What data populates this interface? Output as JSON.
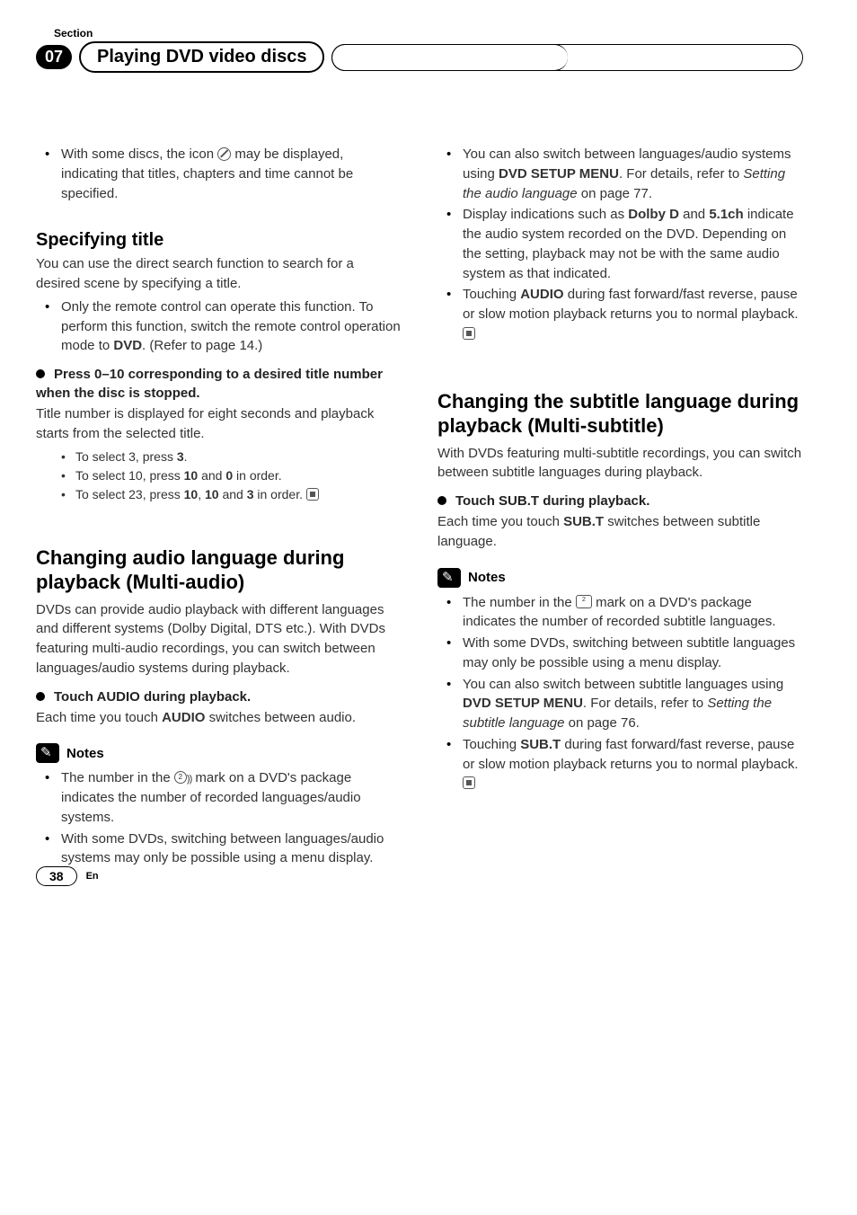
{
  "header": {
    "section_label": "Section",
    "section_number": "07",
    "chapter_title": "Playing DVD video discs"
  },
  "left": {
    "intro_bullet": "With some discs, the icon ⃠ may be displayed, indicating that titles, chapters and time cannot be specified.",
    "h_specifying": "Specifying title",
    "spec_p1": "You can use the direct search function to search for a desired scene by specifying a title.",
    "spec_b1_pre": "Only the remote control can operate this function. To perform this function, switch the remote control operation mode to ",
    "spec_b1_bold": "DVD",
    "spec_b1_post": ". (Refer to page 14.)",
    "spec_step": "Press 0–10 corresponding to a desired title number when the disc is stopped.",
    "spec_p2": "Title number is displayed for eight seconds and playback starts from the selected title.",
    "spec_sub1_a": "To select 3, press ",
    "spec_sub1_b": "3",
    "spec_sub1_c": ".",
    "spec_sub2_a": "To select 10, press ",
    "spec_sub2_b": "10",
    "spec_sub2_c": " and ",
    "spec_sub2_d": "0",
    "spec_sub2_e": " in order.",
    "spec_sub3_a": "To select 23, press ",
    "spec_sub3_b": "10",
    "spec_sub3_c": ", ",
    "spec_sub3_d": "10",
    "spec_sub3_e": " and ",
    "spec_sub3_f": "3",
    "spec_sub3_g": " in order.",
    "h_audio": "Changing audio language during playback (Multi-audio)",
    "audio_p1": "DVDs can provide audio playback with different languages and different systems (Dolby Digital, DTS etc.). With DVDs featuring multi-audio recordings, you can switch between languages/audio systems during playback.",
    "audio_step": "Touch AUDIO during playback.",
    "audio_p2_a": "Each time you touch ",
    "audio_p2_b": "AUDIO",
    "audio_p2_c": " switches between audio.",
    "notes_label": "Notes",
    "audio_n1": "The number in the ②)) mark on a DVD's package indicates the number of recorded languages/audio systems.",
    "audio_n2": "With some DVDs, switching between languages/audio systems may only be possible using a menu display."
  },
  "right": {
    "r_b1_a": "You can also switch between languages/audio systems using ",
    "r_b1_b": "DVD SETUP MENU",
    "r_b1_c": ". For details, refer to ",
    "r_b1_d": "Setting the audio language",
    "r_b1_e": " on page 77.",
    "r_b2_a": "Display indications such as ",
    "r_b2_b": "Dolby D",
    "r_b2_c": " and ",
    "r_b2_d": "5.1ch",
    "r_b2_e": " indicate the audio system recorded on the DVD. Depending on the setting, playback may not be with the same audio system as that indicated.",
    "r_b3_a": "Touching ",
    "r_b3_b": "AUDIO",
    "r_b3_c": " during fast forward/fast reverse, pause or slow motion playback returns you to normal playback.",
    "h_subtitle": "Changing the subtitle language during playback (Multi-subtitle)",
    "sub_p1": "With DVDs featuring multi-subtitle recordings, you can switch between subtitle languages during playback.",
    "sub_step": "Touch SUB.T during playback.",
    "sub_p2_a": "Each time you touch ",
    "sub_p2_b": "SUB.T",
    "sub_p2_c": " switches between subtitle language.",
    "notes_label": "Notes",
    "sub_n1": "The number in the ⬚ mark on a DVD's package indicates the number of recorded subtitle languages.",
    "sub_n2": "With some DVDs, switching between subtitle languages may only be possible using a menu display.",
    "sub_n3_a": "You can also switch between subtitle languages using ",
    "sub_n3_b": "DVD SETUP MENU",
    "sub_n3_c": ". For details, refer to ",
    "sub_n3_d": "Setting the subtitle language",
    "sub_n3_e": " on page 76.",
    "sub_n4_a": "Touching ",
    "sub_n4_b": "SUB.T",
    "sub_n4_c": " during fast forward/fast reverse, pause or slow motion playback returns you to normal playback."
  },
  "footer": {
    "page_number": "38",
    "lang": "En"
  }
}
